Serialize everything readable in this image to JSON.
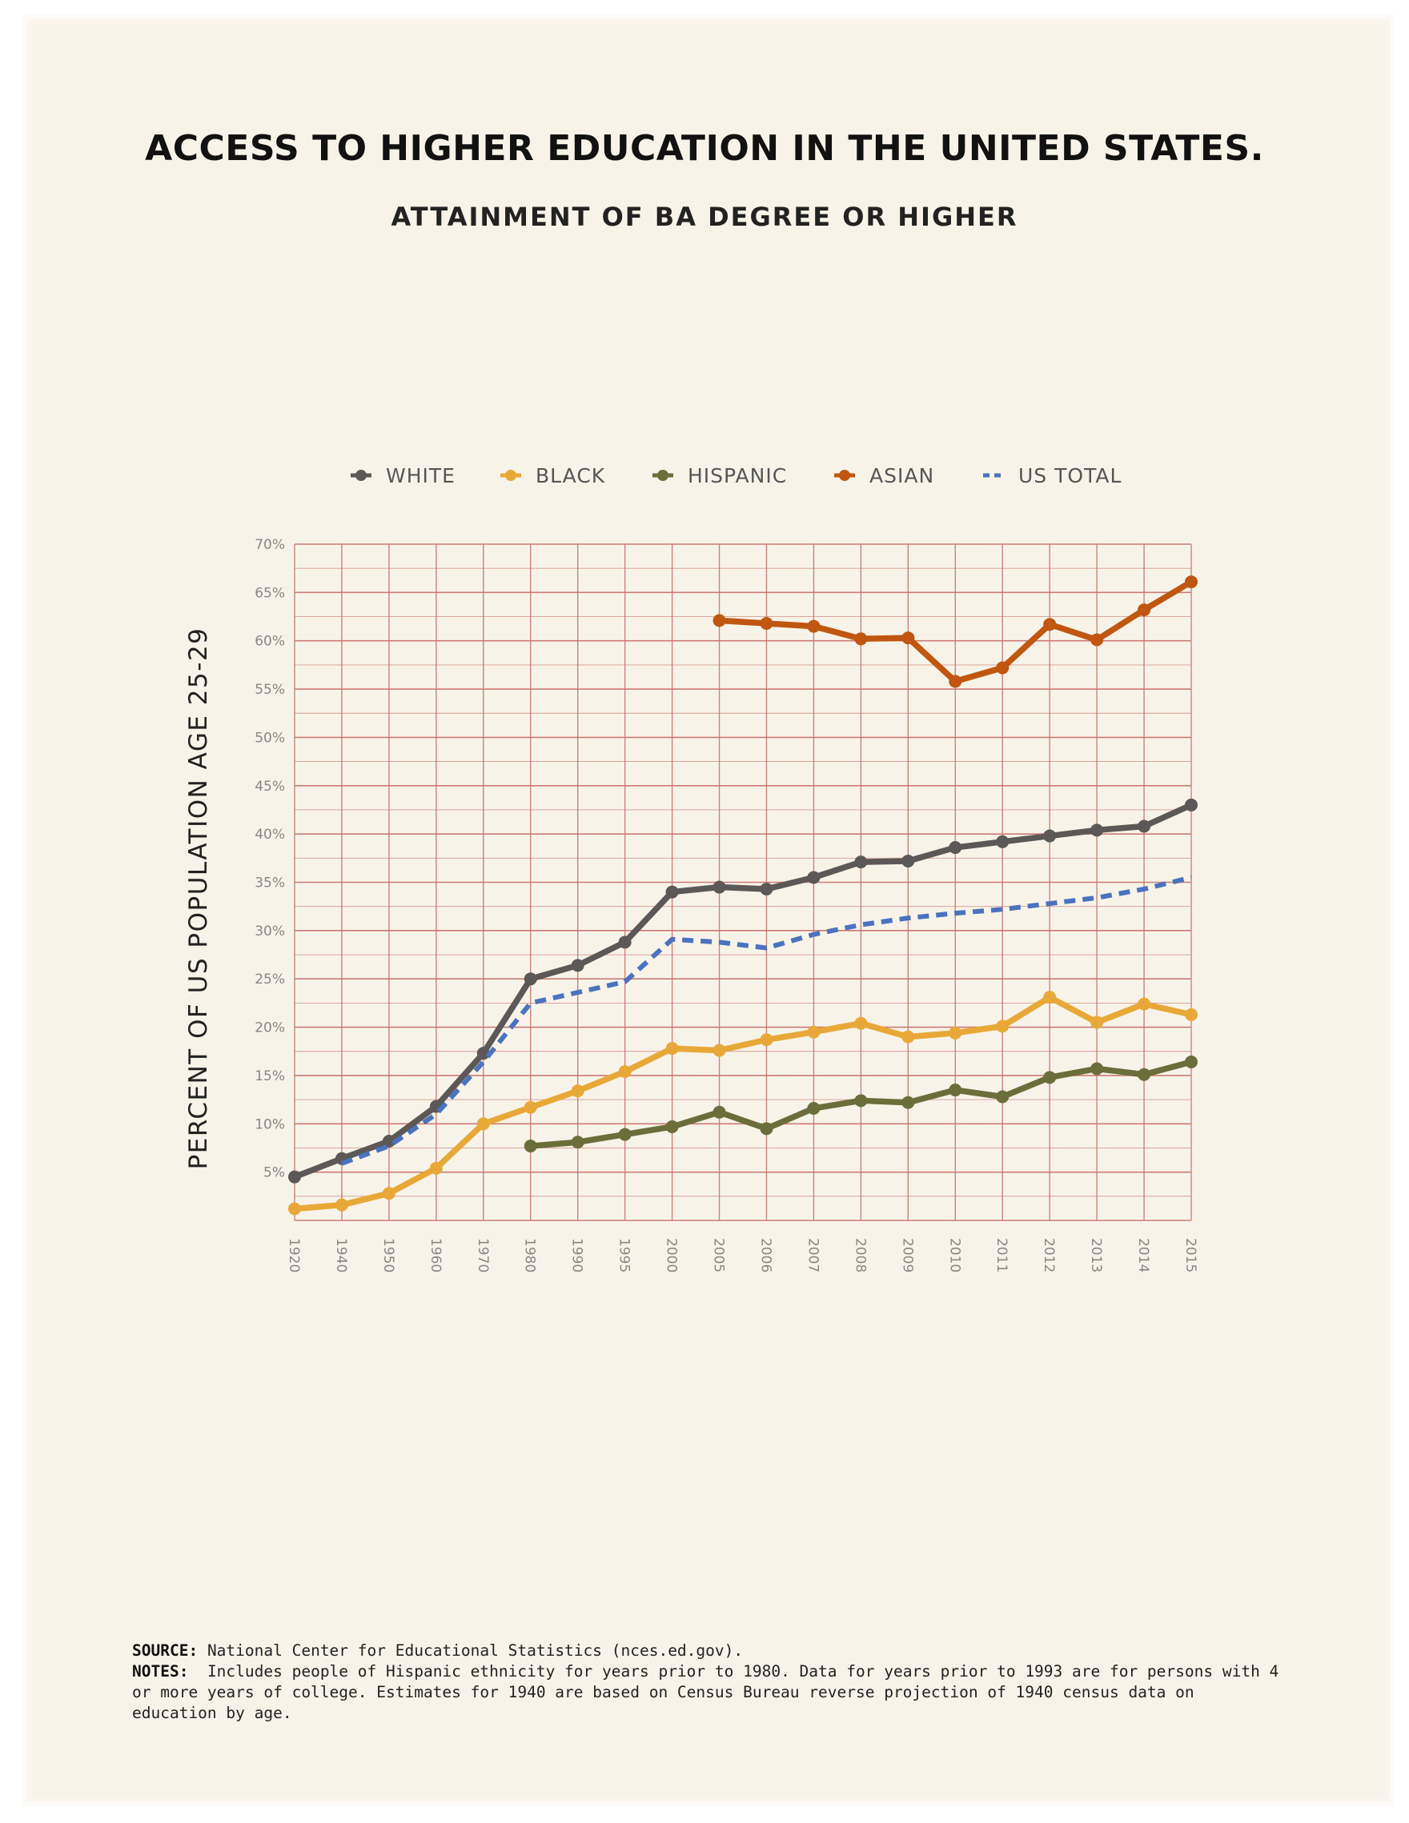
{
  "title": "ACCESS TO HIGHER EDUCATION IN THE UNITED STATES.",
  "subtitle": "ATTAINMENT OF BA DEGREE OR HIGHER",
  "footer": {
    "source_label": "SOURCE:",
    "source_text": "National Center for Educational Statistics (nces.ed.gov).",
    "notes_label": "NOTES:",
    "notes_text": "Includes people of Hispanic ethnicity for years prior to 1980. Data for years prior to 1993 are for persons with 4 or more years of college. Estimates for 1940 are based on Census Bureau reverse projection of 1940 census data on education by age."
  },
  "chart_data": {
    "type": "line",
    "title": "ACCESS TO HIGHER EDUCATION IN THE UNITED STATES.",
    "subtitle": "ATTAINMENT OF BA DEGREE OR HIGHER",
    "xlabel": "",
    "ylabel": "PERCENT OF US POPULATION AGE 25-29",
    "ylim": [
      0,
      70
    ],
    "yticks": [
      5,
      10,
      15,
      20,
      25,
      30,
      35,
      40,
      45,
      50,
      55,
      60,
      65,
      70
    ],
    "ytick_labels": [
      "5%",
      "10%",
      "15%",
      "20%",
      "25%",
      "30%",
      "35%",
      "40%",
      "45%",
      "50%",
      "55%",
      "60%",
      "65%",
      "70%"
    ],
    "categories": [
      "1920",
      "1940",
      "1950",
      "1960",
      "1970",
      "1980",
      "1990",
      "1995",
      "2000",
      "2005",
      "2006",
      "2007",
      "2008",
      "2009",
      "2010",
      "2011",
      "2012",
      "2013",
      "2014",
      "2015"
    ],
    "grid": true,
    "legend_position": "top",
    "series": [
      {
        "name": "WHITE",
        "color": "#5b5857",
        "style": "solid-markers",
        "values": [
          4.5,
          6.4,
          8.2,
          11.8,
          17.3,
          25.0,
          26.4,
          28.8,
          34.0,
          34.5,
          34.3,
          35.5,
          37.1,
          37.2,
          38.6,
          39.2,
          39.8,
          40.4,
          40.8,
          43.0
        ]
      },
      {
        "name": "BLACK",
        "color": "#e8a838",
        "style": "solid-markers",
        "values": [
          1.2,
          1.6,
          2.8,
          5.4,
          10.0,
          11.7,
          13.4,
          15.4,
          17.8,
          17.6,
          18.7,
          19.5,
          20.4,
          19.0,
          19.4,
          20.1,
          23.1,
          20.5,
          22.4,
          21.3
        ]
      },
      {
        "name": "HISPANIC",
        "color": "#6b6e3a",
        "style": "solid-markers",
        "values": [
          null,
          null,
          null,
          null,
          null,
          7.7,
          8.1,
          8.9,
          9.7,
          11.2,
          9.5,
          11.6,
          12.4,
          12.2,
          13.5,
          12.8,
          14.8,
          15.7,
          15.1,
          16.4
        ]
      },
      {
        "name": "ASIAN",
        "color": "#c0560f",
        "style": "solid-markers",
        "values": [
          null,
          null,
          null,
          null,
          null,
          null,
          null,
          null,
          null,
          62.1,
          61.8,
          61.5,
          60.2,
          60.3,
          55.8,
          57.2,
          61.7,
          60.1,
          63.2,
          66.1
        ]
      },
      {
        "name": "US TOTAL",
        "color": "#4a72c0",
        "style": "dashed",
        "values": [
          null,
          5.9,
          7.7,
          11.0,
          16.4,
          22.5,
          23.6,
          24.7,
          29.1,
          28.8,
          28.2,
          29.6,
          30.6,
          31.3,
          31.8,
          32.2,
          32.8,
          33.4,
          34.3,
          35.5
        ]
      }
    ]
  }
}
